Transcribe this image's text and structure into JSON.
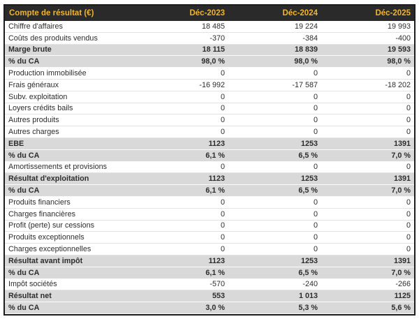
{
  "chart_data": {
    "type": "table",
    "title": "Compte de résultat (€)",
    "columns": [
      "Déc-2023",
      "Déc-2024",
      "Déc-2025"
    ],
    "rows": [
      {
        "label": "Chiffre d'affaires",
        "values": [
          "18 485",
          "19 224",
          "19 993"
        ],
        "emphasis": false
      },
      {
        "label": "Coûts des produits vendus",
        "values": [
          "-370",
          "-384",
          "-400"
        ],
        "emphasis": false
      },
      {
        "label": "Marge brute",
        "values": [
          "18 115",
          "18 839",
          "19 593"
        ],
        "emphasis": true
      },
      {
        "label": "% du CA",
        "values": [
          "98,0 %",
          "98,0 %",
          "98,0 %"
        ],
        "emphasis": true
      },
      {
        "label": "Production immobilisée",
        "values": [
          "0",
          "0",
          "0"
        ],
        "emphasis": false
      },
      {
        "label": "Frais généraux",
        "values": [
          "-16 992",
          "-17 587",
          "-18 202"
        ],
        "emphasis": false
      },
      {
        "label": "Subv. exploitation",
        "values": [
          "0",
          "0",
          "0"
        ],
        "emphasis": false
      },
      {
        "label": "Loyers crédits bails",
        "values": [
          "0",
          "0",
          "0"
        ],
        "emphasis": false
      },
      {
        "label": "Autres produits",
        "values": [
          "0",
          "0",
          "0"
        ],
        "emphasis": false
      },
      {
        "label": "Autres charges",
        "values": [
          "0",
          "0",
          "0"
        ],
        "emphasis": false
      },
      {
        "label": "EBE",
        "values": [
          "1123",
          "1253",
          "1391"
        ],
        "emphasis": true
      },
      {
        "label": "% du CA",
        "values": [
          "6,1 %",
          "6,5 %",
          "7,0 %"
        ],
        "emphasis": true
      },
      {
        "label": "Amortissements et provisions",
        "values": [
          "0",
          "0",
          "0"
        ],
        "emphasis": false
      },
      {
        "label": "Résultat d'exploitation",
        "values": [
          "1123",
          "1253",
          "1391"
        ],
        "emphasis": true
      },
      {
        "label": "% du CA",
        "values": [
          "6,1 %",
          "6,5 %",
          "7,0 %"
        ],
        "emphasis": true
      },
      {
        "label": "Produits financiers",
        "values": [
          "0",
          "0",
          "0"
        ],
        "emphasis": false
      },
      {
        "label": "Charges financières",
        "values": [
          "0",
          "0",
          "0"
        ],
        "emphasis": false
      },
      {
        "label": "Profit (perte) sur cessions",
        "values": [
          "0",
          "0",
          "0"
        ],
        "emphasis": false
      },
      {
        "label": "Produits exceptionnels",
        "values": [
          "0",
          "0",
          "0"
        ],
        "emphasis": false
      },
      {
        "label": "Charges exceptionnelles",
        "values": [
          "0",
          "0",
          "0"
        ],
        "emphasis": false
      },
      {
        "label": "Résultat avant impôt",
        "values": [
          "1123",
          "1253",
          "1391"
        ],
        "emphasis": true
      },
      {
        "label": "% du CA",
        "values": [
          "6,1 %",
          "6,5 %",
          "7,0 %"
        ],
        "emphasis": true
      },
      {
        "label": "Impôt sociétés",
        "values": [
          "-570",
          "-240",
          "-266"
        ],
        "emphasis": false
      },
      {
        "label": "Résultat net",
        "values": [
          "553",
          "1 013",
          "1125"
        ],
        "emphasis": true
      },
      {
        "label": "% du CA",
        "values": [
          "3,0 %",
          "5,3 %",
          "5,6 %"
        ],
        "emphasis": true
      }
    ],
    "layout": {
      "legend": "none",
      "grid": "row-separators",
      "value_alignment": "right"
    }
  },
  "colors": {
    "header_bg": "#2a2a2a",
    "header_text": "#f0b42a",
    "band_row_bg": "#d9d9d9",
    "row_text": "#2d2d2d",
    "outer_border": "#1c1c1c",
    "row_separator": "#e4e4e4"
  }
}
